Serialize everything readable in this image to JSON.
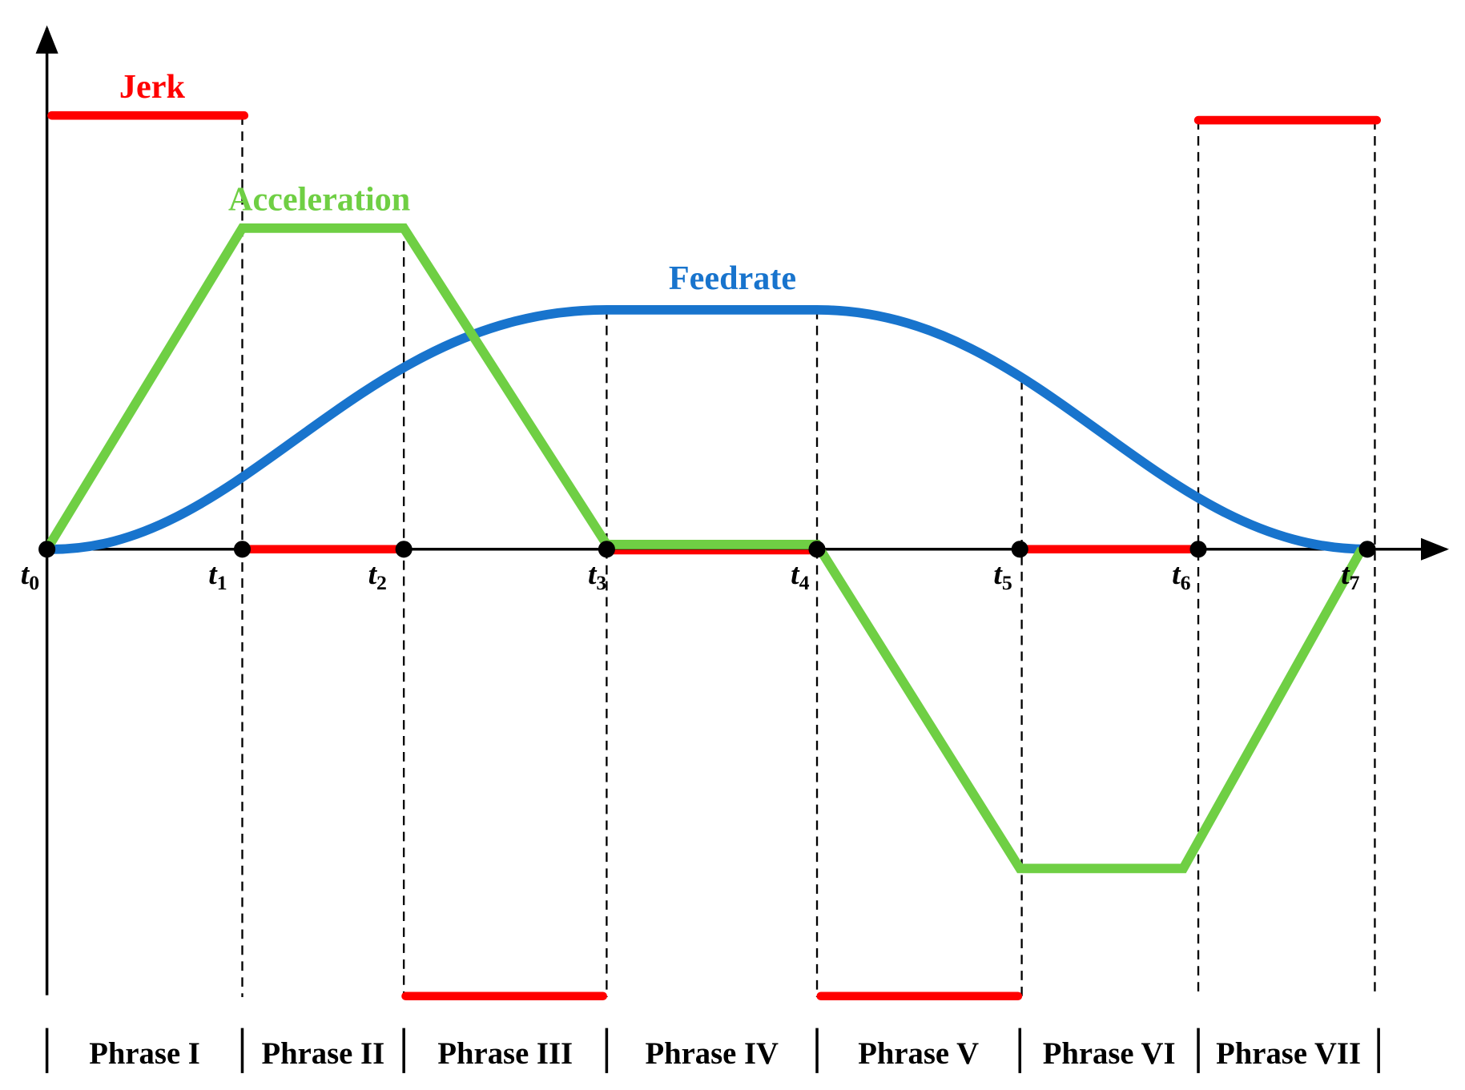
{
  "labels": {
    "jerk": "Jerk",
    "acceleration": "Acceleration",
    "feedrate": "Feedrate"
  },
  "time_points": [
    {
      "var": "t",
      "sub": "0"
    },
    {
      "var": "t",
      "sub": "1"
    },
    {
      "var": "t",
      "sub": "2"
    },
    {
      "var": "t",
      "sub": "3"
    },
    {
      "var": "t",
      "sub": "4"
    },
    {
      "var": "t",
      "sub": "5"
    },
    {
      "var": "t",
      "sub": "6"
    },
    {
      "var": "t",
      "sub": "7"
    }
  ],
  "phases": [
    "Phrase I",
    "Phrase II",
    "Phrase III",
    "Phrase IV",
    "Phrase V",
    "Phrase VI",
    "Phrase VII"
  ]
}
